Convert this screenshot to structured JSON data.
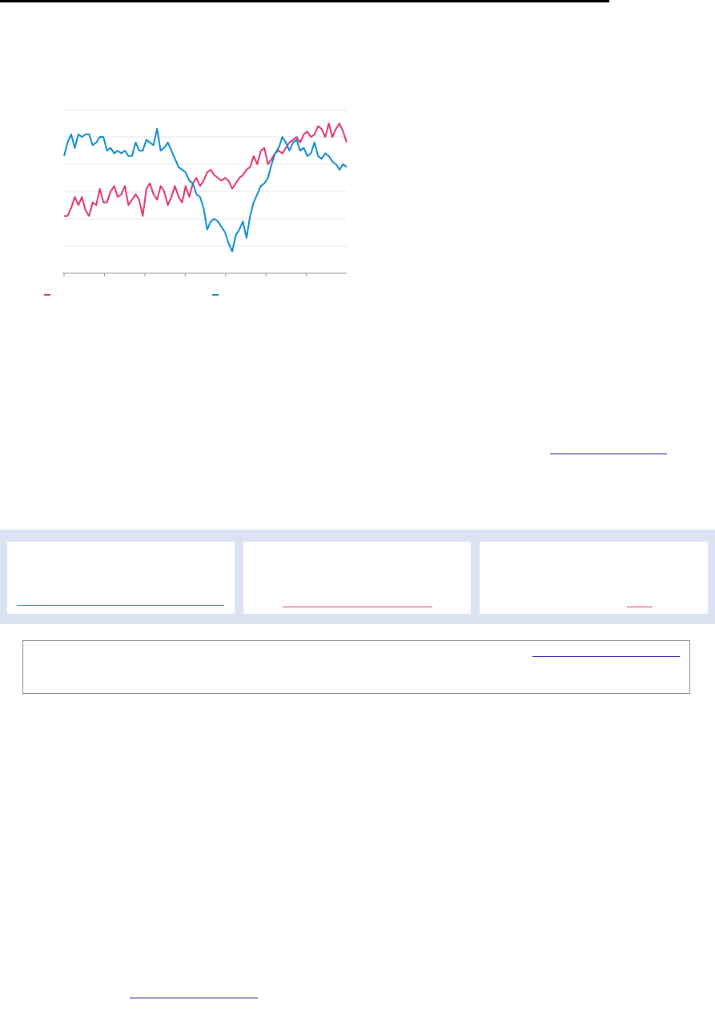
{
  "colors": {
    "series_a": "#e0336e",
    "series_b": "#0a8bcc",
    "grid": "#e6e6e6",
    "axis": "#9a9a9a",
    "link_blue": "#1a0dab",
    "link_pink": "#e0336e",
    "card_band": "#dbe3f3"
  },
  "chart_data": {
    "type": "line",
    "title": "",
    "xlabel": "",
    "ylabel": "",
    "x": [
      1,
      2,
      3,
      4,
      5,
      6,
      7,
      8,
      9,
      10,
      11,
      12,
      13,
      14,
      15,
      16,
      17,
      18,
      19,
      20,
      21,
      22,
      23,
      24,
      25,
      26,
      27,
      28,
      29,
      30,
      31,
      32,
      33,
      34,
      35,
      36,
      37,
      38,
      39,
      40,
      41,
      42,
      43,
      44,
      45,
      46,
      47,
      48,
      49,
      50,
      51,
      52,
      53,
      54,
      55,
      56,
      57,
      58,
      59,
      60,
      61,
      62,
      63,
      64,
      65,
      66,
      67,
      68,
      69,
      70,
      71,
      72,
      73,
      74,
      75,
      76,
      77,
      78,
      79,
      80
    ],
    "ylim": [
      0,
      6
    ],
    "grid": true,
    "legend_position": "bottom",
    "series": [
      {
        "name": "",
        "color": "#e0336e",
        "values": [
          2.1,
          2.1,
          2.4,
          2.8,
          2.5,
          2.8,
          2.3,
          2.1,
          2.6,
          2.5,
          3.1,
          2.6,
          2.6,
          3.0,
          3.2,
          2.8,
          2.9,
          3.2,
          2.5,
          2.7,
          2.9,
          2.7,
          2.1,
          3.1,
          3.3,
          2.9,
          2.7,
          3.2,
          3.0,
          2.5,
          2.8,
          3.2,
          2.8,
          2.6,
          3.2,
          2.8,
          3.3,
          3.5,
          3.2,
          3.4,
          3.7,
          3.8,
          3.6,
          3.5,
          3.4,
          3.5,
          3.4,
          3.1,
          3.3,
          3.5,
          3.6,
          3.8,
          3.9,
          4.3,
          4.0,
          4.5,
          4.6,
          4.0,
          4.2,
          4.4,
          4.5,
          4.4,
          4.6,
          4.8,
          4.9,
          5.0,
          4.8,
          5.1,
          5.2,
          5.0,
          5.1,
          5.4,
          5.3,
          5.0,
          5.5,
          5.0,
          5.3,
          5.5,
          5.2,
          4.8
        ]
      },
      {
        "name": "",
        "color": "#0a8bcc",
        "values": [
          4.3,
          4.8,
          5.1,
          4.6,
          5.1,
          5.0,
          5.1,
          5.1,
          4.7,
          4.8,
          5.0,
          5.0,
          4.5,
          4.6,
          4.4,
          4.5,
          4.4,
          4.5,
          4.3,
          4.3,
          4.8,
          4.5,
          4.5,
          4.9,
          4.8,
          4.7,
          5.3,
          4.5,
          4.6,
          4.8,
          4.5,
          4.2,
          3.9,
          3.8,
          3.7,
          3.4,
          3.3,
          2.9,
          2.8,
          2.4,
          1.6,
          1.9,
          2.0,
          1.9,
          1.7,
          1.5,
          1.1,
          0.8,
          1.4,
          1.6,
          1.9,
          1.3,
          2.1,
          2.6,
          2.9,
          3.2,
          3.3,
          3.5,
          4.0,
          4.4,
          4.6,
          5.0,
          4.8,
          4.5,
          4.8,
          4.9,
          4.5,
          4.6,
          4.3,
          4.4,
          4.8,
          4.3,
          4.2,
          4.4,
          4.3,
          4.1,
          4.0,
          3.8,
          4.0,
          3.9
        ]
      }
    ]
  }
}
